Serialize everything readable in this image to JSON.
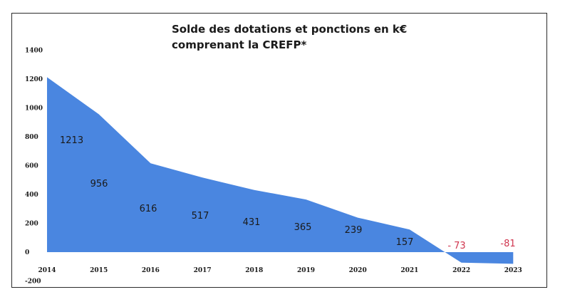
{
  "chart_data": {
    "type": "area",
    "title_line1": "Solde des dotations et ponctions en k€",
    "title_line2": "comprenant la CREFP*",
    "categories": [
      "2014",
      "2015",
      "2016",
      "2017",
      "2018",
      "2019",
      "2020",
      "2021",
      "2022",
      "2023"
    ],
    "values": [
      1213,
      956,
      616,
      517,
      431,
      365,
      239,
      157,
      -73,
      -81
    ],
    "data_labels": [
      "1213",
      "956",
      "616",
      "517",
      "431",
      "365",
      "239",
      "157",
      "- 73",
      "-81"
    ],
    "yticks": [
      "1400",
      "1200",
      "1000",
      "800",
      "600",
      "400",
      "200",
      "0",
      "-200"
    ],
    "ylim": [
      -200,
      1400
    ],
    "grid": false,
    "legend": "none",
    "colors": {
      "area": "#4a86e0",
      "negative_label": "#d0364f",
      "text": "#1a1a1a"
    }
  }
}
